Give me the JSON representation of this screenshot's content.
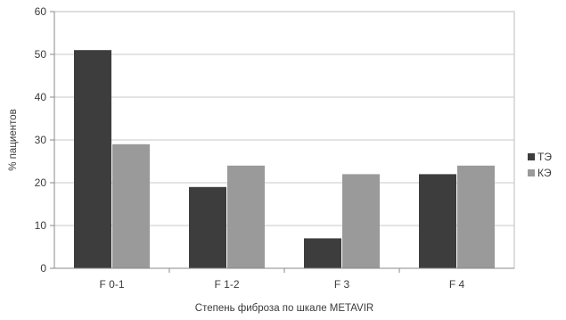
{
  "chart_data": {
    "type": "bar",
    "title": "",
    "xlabel": "Степень фиброза по шкале METAVIR",
    "ylabel": "% пациентов",
    "categories": [
      "F 0-1",
      "F 1-2",
      "F 3",
      "F 4"
    ],
    "series": [
      {
        "name": "ТЭ",
        "values": [
          51,
          19,
          7,
          22
        ],
        "color": "#3d3d3d"
      },
      {
        "name": "КЭ",
        "values": [
          29,
          24,
          22,
          24
        ],
        "color": "#9a9a9a"
      }
    ],
    "ylim": [
      0,
      60
    ],
    "yticks": [
      0,
      10,
      20,
      30,
      40,
      50,
      60
    ],
    "grid": true,
    "legend_position": "right"
  }
}
